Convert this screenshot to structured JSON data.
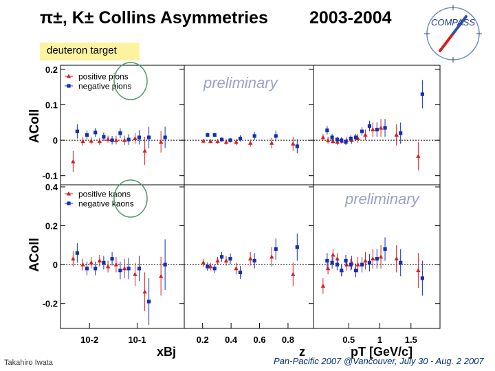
{
  "slide": {
    "title": "π±, K± Collins Asymmetries",
    "years": "2003-2004",
    "target_label": "deuteron target",
    "logo_text": "COMPASS",
    "footer_author": "Takahiro Iwata",
    "footer_conference": "Pan-Pacific 2007 @Vancouver, July 30 - Aug. 2 2007"
  },
  "chart_data": {
    "type": "scatter",
    "watermark": "preliminary",
    "x_axes": [
      {
        "label": "xBj",
        "scale": "log",
        "ticks": [
          {
            "v": 0.01,
            "t": "10-2"
          },
          {
            "v": 0.1,
            "t": "10-1"
          }
        ],
        "range": [
          0.003,
          0.8
        ]
      },
      {
        "label": "z",
        "scale": "linear",
        "ticks": [
          {
            "v": 0.2,
            "t": "0.2"
          },
          {
            "v": 0.4,
            "t": "0.4"
          },
          {
            "v": 0.6,
            "t": "0.6"
          },
          {
            "v": 0.8,
            "t": "0.8"
          }
        ],
        "range": [
          0.1,
          0.95
        ]
      },
      {
        "label": "pT [GeV/c]",
        "scale": "linear",
        "ticks": [
          {
            "v": 0.5,
            "t": "0.5"
          },
          {
            "v": 1,
            "t": "1"
          },
          {
            "v": 1.5,
            "t": "1.5"
          }
        ],
        "range": [
          0,
          1.9
        ]
      }
    ],
    "rows": [
      {
        "ylabel": "AColl",
        "ylim": [
          -0.12,
          0.2
        ],
        "yticks": [
          {
            "v": 0.2,
            "t": "0.2"
          },
          {
            "v": 0.1,
            "t": "0.1"
          },
          {
            "v": 0,
            "t": "0"
          },
          {
            "v": -0.1,
            "t": "-0.1"
          }
        ],
        "legend": [
          "positive pions",
          "negative pions"
        ],
        "series": [
          {
            "name": "positive pions",
            "color": "#d62020",
            "marker": "triangle",
            "panels": [
              {
                "x": [
                  0.005,
                  0.008,
                  0.012,
                  0.018,
                  0.027,
                  0.04,
                  0.06,
                  0.1,
                  0.16,
                  0.35
                ],
                "y": [
                  -0.06,
                  -0.003,
                  -0.002,
                  -0.003,
                  0.003,
                  0.0,
                  0.0,
                  0.005,
                  -0.03,
                  -0.005
                ],
                "e": [
                  0.03,
                  0.012,
                  0.01,
                  0.01,
                  0.01,
                  0.012,
                  0.013,
                  0.015,
                  0.04,
                  0.03
                ]
              },
              {
                "x": [
                  0.22,
                  0.27,
                  0.32,
                  0.38,
                  0.45,
                  0.55,
                  0.7,
                  0.85
                ],
                "y": [
                  -0.002,
                  -0.003,
                  -0.003,
                  -0.005,
                  -0.005,
                  -0.008,
                  -0.008,
                  -0.01
                ],
                "e": [
                  0.005,
                  0.005,
                  0.006,
                  0.007,
                  0.009,
                  0.01,
                  0.015,
                  0.02
                ]
              },
              {
                "x": [
                  0.12,
                  0.2,
                  0.28,
                  0.35,
                  0.42,
                  0.5,
                  0.58,
                  0.68,
                  0.8,
                  0.92,
                  1.05,
                  1.3,
                  1.65
                ],
                "y": [
                  0.008,
                  0.0,
                  -0.003,
                  -0.005,
                  -0.002,
                  0.0,
                  0.0,
                  0.005,
                  0.015,
                  0.03,
                  0.035,
                  0.015,
                  -0.045
                ],
                "e": [
                  0.01,
                  0.01,
                  0.008,
                  0.008,
                  0.008,
                  0.009,
                  0.01,
                  0.012,
                  0.015,
                  0.02,
                  0.025,
                  0.03,
                  0.04
                ]
              }
            ]
          },
          {
            "name": "negative pions",
            "color": "#1030b8",
            "marker": "square",
            "panels": [
              {
                "x": [
                  0.005,
                  0.008,
                  0.012,
                  0.018,
                  0.027,
                  0.04,
                  0.06,
                  0.1,
                  0.16,
                  0.35
                ],
                "y": [
                  0.025,
                  0.015,
                  0.022,
                  0.01,
                  0.0,
                  0.02,
                  0.002,
                  0.008,
                  0.008,
                  0.008
                ],
                "e": [
                  0.02,
                  0.013,
                  0.012,
                  0.012,
                  0.012,
                  0.014,
                  0.015,
                  0.02,
                  0.03,
                  0.03
                ]
              },
              {
                "x": [
                  0.22,
                  0.27,
                  0.32,
                  0.38,
                  0.45,
                  0.55,
                  0.7,
                  0.85
                ],
                "y": [
                  0.015,
                  0.015,
                  0.002,
                  0.0,
                  0.005,
                  0.012,
                  0.012,
                  -0.017
                ],
                "e": [
                  0.006,
                  0.006,
                  0.006,
                  0.007,
                  0.009,
                  0.011,
                  0.015,
                  0.02
                ]
              },
              {
                "x": [
                  0.12,
                  0.2,
                  0.28,
                  0.35,
                  0.42,
                  0.5,
                  0.58,
                  0.68,
                  0.8,
                  0.92,
                  1.05,
                  1.3,
                  1.65
                ],
                "y": [
                  0.028,
                  0.008,
                  0.002,
                  0.0,
                  -0.005,
                  0.005,
                  0.008,
                  0.025,
                  0.04,
                  0.03,
                  0.035,
                  0.02,
                  0.13
                ],
                "e": [
                  0.012,
                  0.01,
                  0.008,
                  0.008,
                  0.008,
                  0.009,
                  0.01,
                  0.012,
                  0.015,
                  0.02,
                  0.025,
                  0.03,
                  0.04
                ]
              }
            ]
          }
        ]
      },
      {
        "ylabel": "AColl",
        "ylim": [
          -0.3,
          0.4
        ],
        "yticks": [
          {
            "v": 0.4,
            "t": "0.4"
          },
          {
            "v": 0.2,
            "t": "0.2"
          },
          {
            "v": 0,
            "t": "0"
          },
          {
            "v": -0.2,
            "t": "-0.2"
          }
        ],
        "legend": [
          "positive kaons",
          "negative kaons"
        ],
        "series": [
          {
            "name": "positive kaons",
            "color": "#d62020",
            "marker": "triangle",
            "panels": [
              {
                "x": [
                  0.005,
                  0.008,
                  0.012,
                  0.018,
                  0.027,
                  0.04,
                  0.06,
                  0.1,
                  0.16,
                  0.35
                ],
                "y": [
                  0.03,
                  0.0,
                  0.01,
                  0.02,
                  -0.01,
                  0.0,
                  -0.02,
                  -0.05,
                  -0.14,
                  -0.06
                ],
                "e": [
                  0.04,
                  0.03,
                  0.03,
                  0.03,
                  0.03,
                  0.04,
                  0.05,
                  0.06,
                  0.1,
                  0.1
                ]
              },
              {
                "x": [
                  0.22,
                  0.27,
                  0.32,
                  0.38,
                  0.45,
                  0.55,
                  0.7,
                  0.85
                ],
                "y": [
                  0.01,
                  -0.01,
                  0.02,
                  0.02,
                  -0.02,
                  0.03,
                  0.04,
                  -0.05
                ],
                "e": [
                  0.02,
                  0.02,
                  0.02,
                  0.025,
                  0.03,
                  0.035,
                  0.05,
                  0.06
                ]
              },
              {
                "x": [
                  0.12,
                  0.2,
                  0.28,
                  0.35,
                  0.42,
                  0.5,
                  0.58,
                  0.68,
                  0.8,
                  0.92,
                  1.05,
                  1.3,
                  1.65
                ],
                "y": [
                  -0.11,
                  -0.02,
                  0.05,
                  0.03,
                  -0.03,
                  0.0,
                  0.01,
                  0.0,
                  0.02,
                  0.03,
                  0.04,
                  0.03,
                  -0.03
                ],
                "e": [
                  0.04,
                  0.03,
                  0.03,
                  0.03,
                  0.03,
                  0.03,
                  0.035,
                  0.04,
                  0.045,
                  0.05,
                  0.06,
                  0.07,
                  0.09
                ]
              }
            ]
          },
          {
            "name": "negative kaons",
            "color": "#1030b8",
            "marker": "square",
            "panels": [
              {
                "x": [
                  0.005,
                  0.008,
                  0.012,
                  0.018,
                  0.027,
                  0.04,
                  0.06,
                  0.1,
                  0.16,
                  0.35
                ],
                "y": [
                  0.06,
                  -0.02,
                  -0.02,
                  0.01,
                  0.03,
                  -0.03,
                  -0.02,
                  -0.02,
                  -0.19,
                  0.0
                ],
                "e": [
                  0.05,
                  0.035,
                  0.035,
                  0.035,
                  0.035,
                  0.045,
                  0.055,
                  0.065,
                  0.12,
                  0.13
                ]
              },
              {
                "x": [
                  0.22,
                  0.27,
                  0.32,
                  0.38,
                  0.45,
                  0.55,
                  0.7,
                  0.85
                ],
                "y": [
                  -0.01,
                  -0.02,
                  0.04,
                  0.03,
                  -0.04,
                  0.02,
                  0.08,
                  0.09
                ],
                "e": [
                  0.022,
                  0.022,
                  0.025,
                  0.028,
                  0.033,
                  0.04,
                  0.055,
                  0.07
                ]
              },
              {
                "x": [
                  0.12,
                  0.2,
                  0.28,
                  0.35,
                  0.42,
                  0.5,
                  0.58,
                  0.68,
                  0.8,
                  0.92,
                  1.05,
                  1.3,
                  1.65
                ],
                "y": [
                  0.02,
                  0.01,
                  0.0,
                  -0.03,
                  0.02,
                  0.0,
                  -0.03,
                  0.0,
                  0.01,
                  0.03,
                  0.08,
                  0.01,
                  -0.07
                ],
                "e": [
                  0.04,
                  0.03,
                  0.03,
                  0.03,
                  0.03,
                  0.03,
                  0.035,
                  0.04,
                  0.045,
                  0.05,
                  0.06,
                  0.07,
                  0.09
                ]
              }
            ]
          }
        ]
      }
    ]
  }
}
